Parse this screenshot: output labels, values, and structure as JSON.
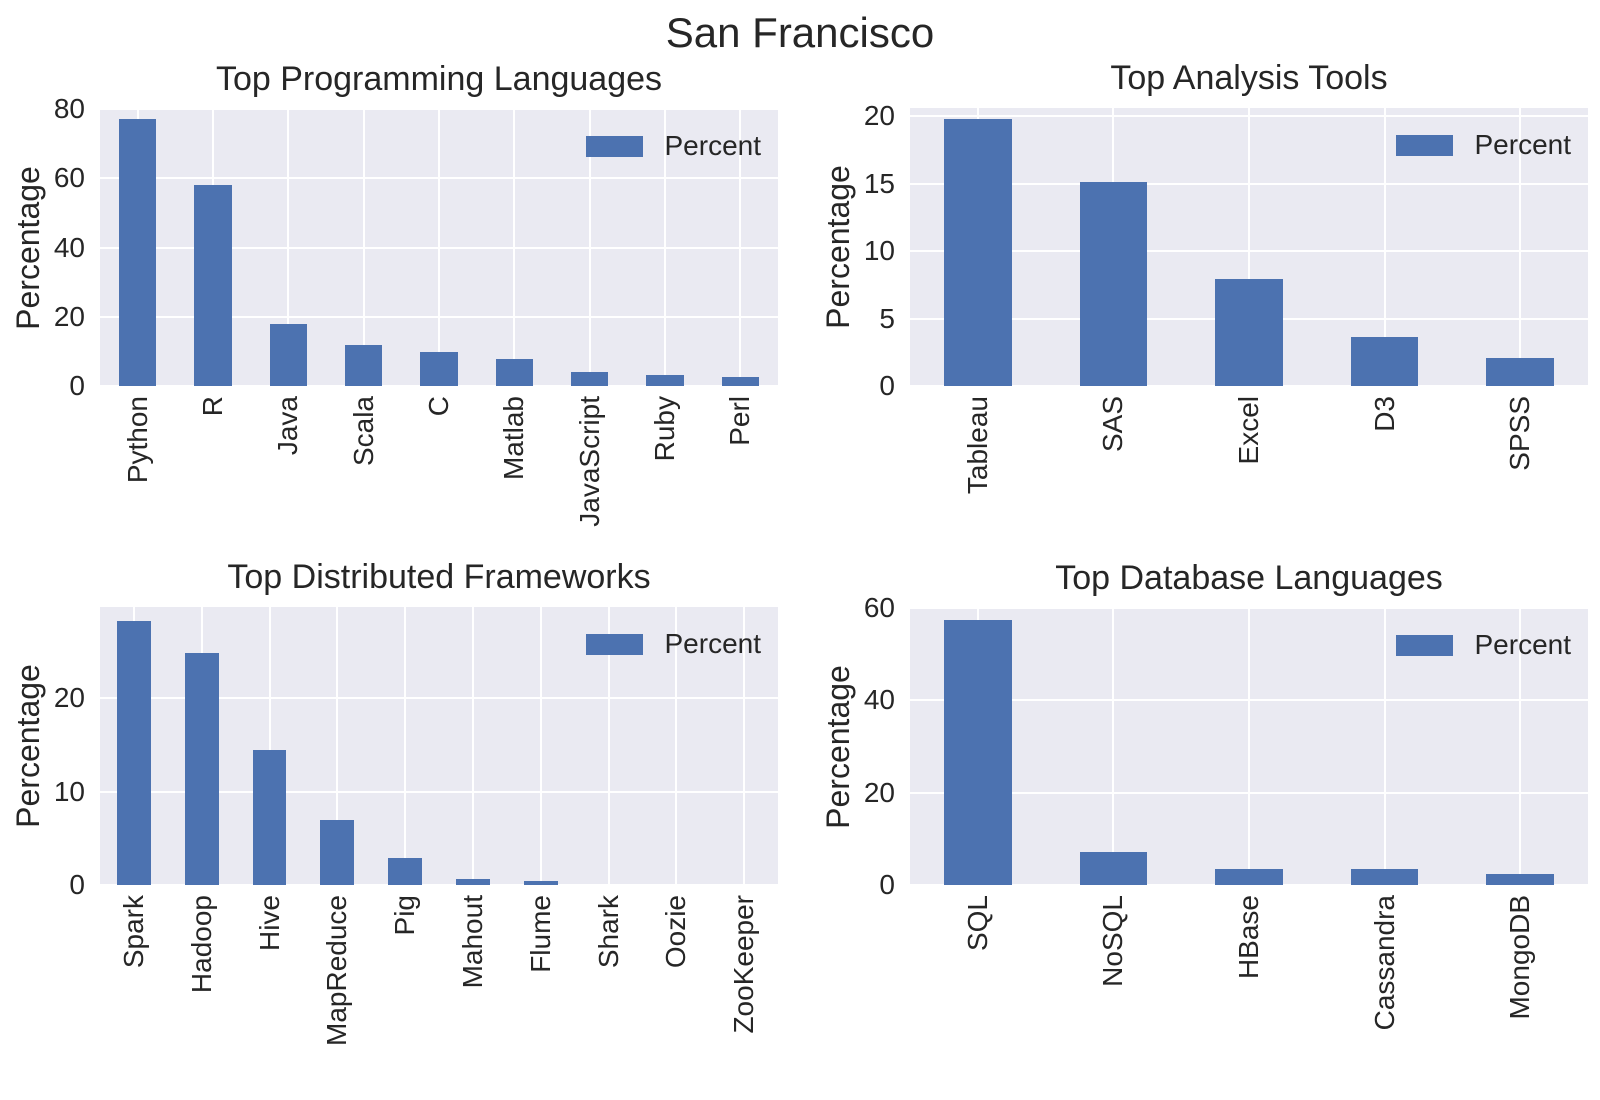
{
  "figure": {
    "title": "San Francisco",
    "colors": {
      "bar": "#4c72b0",
      "plot_background": "#eaeaf2",
      "gridline": "#ffffff",
      "text": "#262626"
    }
  },
  "chart_data": [
    {
      "type": "bar",
      "title": "Top Programming Languages",
      "ylabel": "Percentage",
      "legend": [
        "Percent"
      ],
      "legend_position": "upper right",
      "grid": true,
      "categories": [
        "Python",
        "R",
        "Java",
        "Scala",
        "C",
        "Matlab",
        "JavaScript",
        "Ruby",
        "Perl"
      ],
      "values": [
        77,
        58,
        18,
        12,
        9.8,
        7.8,
        4.2,
        3.2,
        2.7
      ],
      "yticks": [
        0,
        20,
        40,
        60,
        80
      ],
      "ylim": [
        0,
        80
      ]
    },
    {
      "type": "bar",
      "title": "Top Analysis Tools",
      "ylabel": "Percentage",
      "legend": [
        "Percent"
      ],
      "legend_position": "upper right",
      "grid": true,
      "categories": [
        "Tableau",
        "SAS",
        "Excel",
        "D3",
        "SPSS"
      ],
      "values": [
        19.8,
        15.1,
        7.9,
        3.6,
        2.1
      ],
      "yticks": [
        0,
        5,
        10,
        15,
        20
      ],
      "ylim": [
        0,
        20.6
      ]
    },
    {
      "type": "bar",
      "title": "Top Distributed Frameworks",
      "ylabel": "Percentage",
      "legend": [
        "Percent"
      ],
      "legend_position": "upper right",
      "grid": true,
      "categories": [
        "Spark",
        "Hadoop",
        "Hive",
        "MapReduce",
        "Pig",
        "Mahout",
        "Flume",
        "Shark",
        "Oozie",
        "ZooKeeper"
      ],
      "values": [
        28.3,
        24.9,
        14.5,
        7.0,
        2.9,
        0.6,
        0.4,
        0,
        0,
        0
      ],
      "yticks": [
        0,
        10,
        20
      ],
      "ylim": [
        0,
        29.8
      ]
    },
    {
      "type": "bar",
      "title": "Top Database Languages",
      "ylabel": "Percentage",
      "legend": [
        "Percent"
      ],
      "legend_position": "upper right",
      "grid": true,
      "categories": [
        "SQL",
        "NoSQL",
        "HBase",
        "Cassandra",
        "MongoDB"
      ],
      "values": [
        57.5,
        7.2,
        3.4,
        3.4,
        2.3
      ],
      "yticks": [
        0,
        20,
        40,
        60
      ],
      "ylim": [
        0,
        60
      ]
    }
  ]
}
